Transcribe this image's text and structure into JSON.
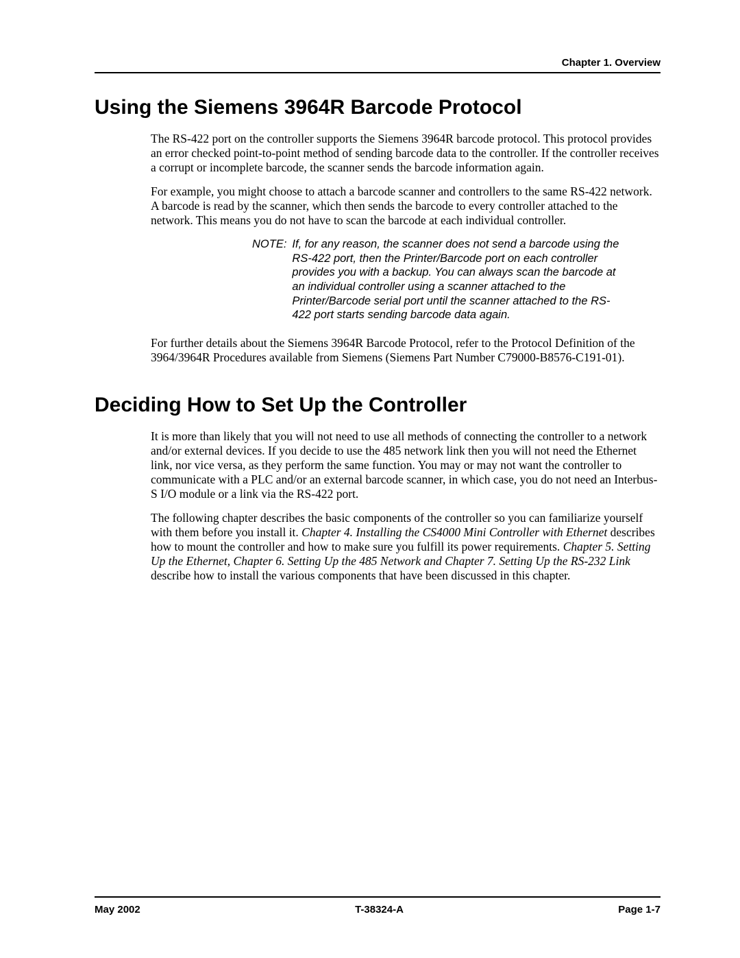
{
  "header": {
    "chapter": "Chapter 1. Overview"
  },
  "sections": {
    "s1": {
      "title": "Using the Siemens 3964R Barcode Protocol",
      "p1": "The RS-422 port on the controller supports the Siemens 3964R barcode protocol. This protocol provides an error checked point-to-point method of sending barcode data to the controller. If the controller receives a corrupt or incomplete barcode, the scanner sends the barcode information again.",
      "p2": "For example, you might choose to attach a barcode scanner and controllers to the same RS-422 network. A barcode is read by the scanner, which then sends the barcode to every controller attached to the network. This means you do not have to scan the barcode at each individual controller.",
      "note_label": "NOTE:",
      "note_text": "If, for any reason, the scanner does not send a barcode using the RS-422 port, then the Printer/Barcode port on each controller provides you with a backup. You can always scan the barcode at an individual controller using a scanner attached to the Printer/Barcode serial port until the scanner attached to the RS-422 port starts sending barcode data again.",
      "p3": "For further details about the Siemens 3964R Barcode Protocol, refer to the Protocol Definition of the 3964/3964R Procedures available from Siemens (Siemens Part Number C79000-B8576-C191-01)."
    },
    "s2": {
      "title": "Deciding How to Set Up the Controller",
      "p1": "It is more than likely that you will not need to use all methods of connecting the controller to a network and/or external devices. If you decide to use the 485 network link then you will not need the Ethernet link, nor vice versa, as they perform the same function. You may or may not want the controller to communicate with a PLC and/or an external barcode scanner, in which case, you do not need an Interbus-S I/O module or a link via the RS-422 port.",
      "p2a": "The following chapter describes the basic components of the controller so you can familiarize yourself with them before you install it. ",
      "p2_ref1": "Chapter 4. Installing the CS4000 Mini Controller with Ethernet",
      "p2b": " describes how to mount the controller and how to make sure you fulfill its power requirements. ",
      "p2_ref2": "Chapter 5. Setting Up the Ethernet, Chapter 6. Setting Up the 485 Network and Chapter 7. Setting Up the RS-232 Link",
      "p2c": " describe how to install the various components that have been discussed in this chapter."
    }
  },
  "footer": {
    "left": "May 2002",
    "center": "T-38324-A",
    "right": "Page 1-7"
  }
}
